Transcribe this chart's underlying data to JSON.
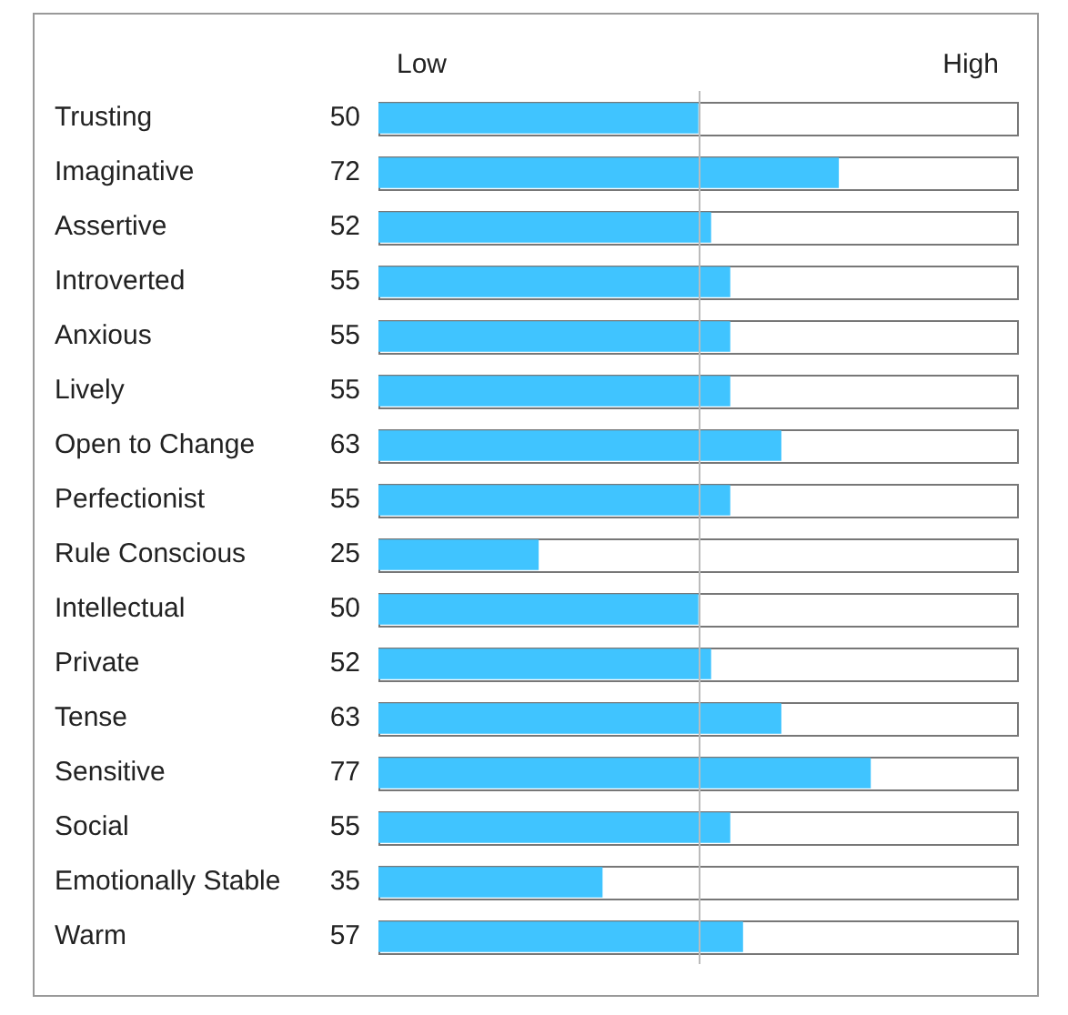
{
  "chart_data": {
    "type": "bar",
    "orientation": "horizontal",
    "categories": [
      "Trusting",
      "Imaginative",
      "Assertive",
      "Introverted",
      "Anxious",
      "Lively",
      "Open to Change",
      "Perfectionist",
      "Rule Conscious",
      "Intellectual",
      "Private",
      "Tense",
      "Sensitive",
      "Social",
      "Emotionally Stable",
      "Warm"
    ],
    "values": [
      50,
      72,
      52,
      55,
      55,
      55,
      63,
      55,
      25,
      50,
      52,
      63,
      77,
      55,
      35,
      57
    ],
    "color": "#40c4ff",
    "xlim": [
      0,
      100
    ],
    "data_labels": true,
    "legend": false,
    "ref_lines": [
      {
        "axis": "x",
        "value": 50,
        "label": null,
        "color": "#bbbbbb"
      }
    ],
    "annotations": [
      "Low",
      "High"
    ]
  }
}
